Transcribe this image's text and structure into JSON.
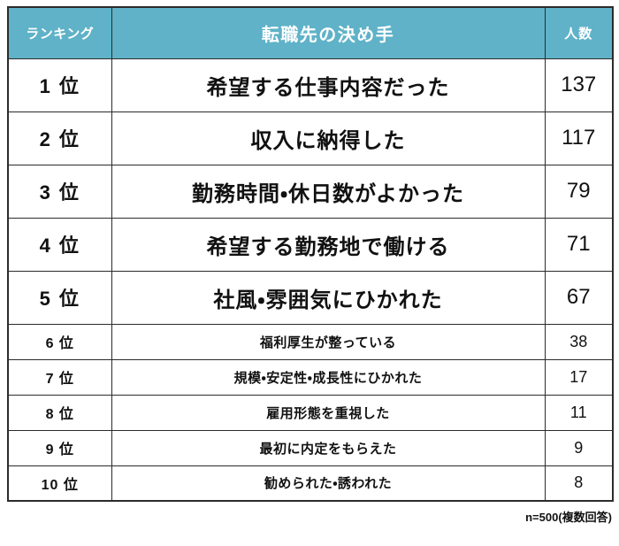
{
  "table": {
    "header": {
      "rank": "ランキング",
      "factor": "転職先の決め手",
      "count": "人数"
    },
    "rows": [
      {
        "rank": "1 位",
        "factor": "希望する仕事内容だった",
        "count": "137",
        "size": "large"
      },
      {
        "rank": "2 位",
        "factor": "収入に納得した",
        "count": "117",
        "size": "large"
      },
      {
        "rank": "3 位",
        "factor": "勤務時間・休日数がよかった",
        "count": "79",
        "size": "large"
      },
      {
        "rank": "4 位",
        "factor": "希望する勤務地で働ける",
        "count": "71",
        "size": "large"
      },
      {
        "rank": "5 位",
        "factor": "社風・雰囲気にひかれた",
        "count": "67",
        "size": "large"
      },
      {
        "rank": "6 位",
        "factor": "福利厚生が整っている",
        "count": "38",
        "size": "small"
      },
      {
        "rank": "7 位",
        "factor": "規模・安定性・成長性にひかれた",
        "count": "17",
        "size": "small"
      },
      {
        "rank": "8 位",
        "factor": "雇用形態を重視した",
        "count": "11",
        "size": "small"
      },
      {
        "rank": "9 位",
        "factor": "最初に内定をもらえた",
        "count": "9",
        "size": "small"
      },
      {
        "rank": "10 位",
        "factor": "勧められた・誘われた",
        "count": "8",
        "size": "small"
      }
    ],
    "footer_note": "n=500(複数回答)"
  },
  "colors": {
    "header_bg": "#5FB2C8",
    "header_text": "#FFFFFF",
    "border": "#2B2B2B",
    "text": "#111111",
    "page_bg": "#FFFFFF"
  },
  "chart_data": {
    "type": "table",
    "title": "転職先の決め手",
    "columns": [
      "ランキング",
      "転職先の決め手",
      "人数"
    ],
    "ranks": [
      "1位",
      "2位",
      "3位",
      "4位",
      "5位",
      "6位",
      "7位",
      "8位",
      "9位",
      "10位"
    ],
    "categories": [
      "希望する仕事内容だった",
      "収入に納得した",
      "勤務時間・休日数がよかった",
      "希望する勤務地で働ける",
      "社風・雰囲気にひかれた",
      "福利厚生が整っている",
      "規模・安定性・成長性にひかれた",
      "雇用形態を重視した",
      "最初に内定をもらえた",
      "勧められた・誘われた"
    ],
    "values": [
      137,
      117,
      79,
      71,
      67,
      38,
      17,
      11,
      9,
      8
    ],
    "note": "n=500(複数回答)",
    "sample_size": 500
  }
}
